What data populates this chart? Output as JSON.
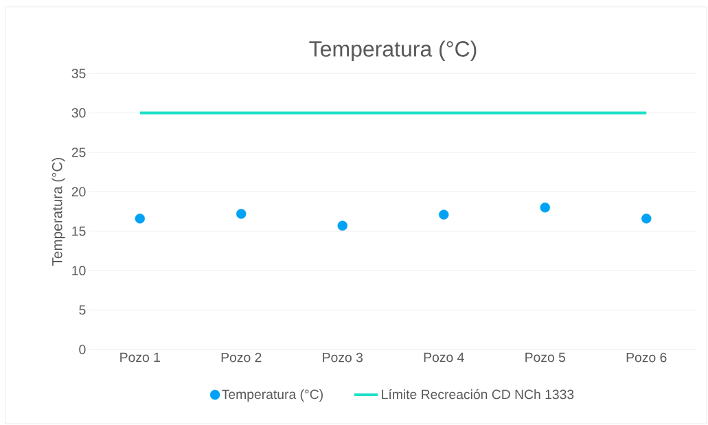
{
  "chart_data": {
    "type": "scatter",
    "title": "Temperatura (°C)",
    "ylabel": "Temperatura (°C)",
    "categories": [
      "Pozo 1",
      "Pozo 2",
      "Pozo 3",
      "Pozo 4",
      "Pozo 5",
      "Pozo 6"
    ],
    "series": [
      {
        "name": "Temperatura (°C)",
        "color": "#00a2f5",
        "values": [
          16.6,
          17.2,
          15.7,
          17.1,
          18.0,
          16.6
        ],
        "marker": "circle"
      },
      {
        "name": "Límite Recreación CD NCh 1333",
        "color": "#1de0c8",
        "type": "line",
        "values": [
          30,
          30,
          30,
          30,
          30,
          30
        ],
        "marker": "none"
      }
    ],
    "ylim": [
      0,
      35
    ],
    "yticks": [
      0,
      5,
      10,
      15,
      20,
      25,
      30,
      35
    ],
    "grid": "y",
    "legend": "bottom"
  }
}
